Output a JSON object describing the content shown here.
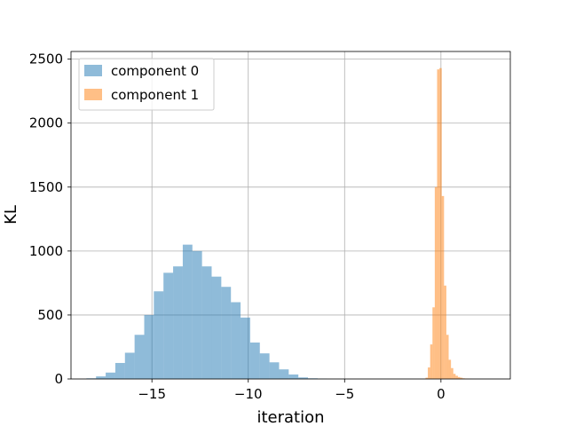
{
  "chart_data": {
    "type": "bar",
    "title": "",
    "xlabel": "iteration",
    "ylabel": "KL",
    "xlim": [
      -19.2,
      3.6
    ],
    "ylim": [
      0,
      2560
    ],
    "grid": true,
    "legend_position": "top-left",
    "x_ticks": [
      -15,
      -10,
      -5,
      0
    ],
    "x_tick_labels": [
      "−15",
      "−10",
      "−5",
      "0"
    ],
    "y_ticks": [
      0,
      500,
      1000,
      1500,
      2000,
      2500
    ],
    "y_tick_labels": [
      "0",
      "500",
      "1000",
      "1500",
      "2000",
      "2500"
    ],
    "series": [
      {
        "name": "component 0",
        "color": "#1f77b4",
        "alpha": 0.5,
        "bin_edges": [
          -18.4,
          -17.9,
          -17.4,
          -16.9,
          -16.4,
          -15.9,
          -15.4,
          -14.9,
          -14.4,
          -13.9,
          -13.4,
          -12.9,
          -12.4,
          -11.9,
          -11.4,
          -10.9,
          -10.4,
          -9.9,
          -9.4,
          -8.9,
          -8.4,
          -7.9,
          -7.4,
          -6.9,
          -6.4,
          -5.9
        ],
        "counts": [
          5,
          20,
          50,
          125,
          205,
          345,
          500,
          685,
          830,
          880,
          1050,
          1000,
          880,
          800,
          720,
          600,
          480,
          285,
          200,
          130,
          75,
          35,
          12,
          5,
          2
        ]
      },
      {
        "name": "component 1",
        "color": "#ff7f0e",
        "alpha": 0.5,
        "bin_edges": [
          -0.8,
          -0.68,
          -0.56,
          -0.44,
          -0.32,
          -0.2,
          -0.08,
          0.04,
          0.16,
          0.28,
          0.4,
          0.52,
          0.64,
          0.76,
          0.88,
          1.0,
          1.12,
          1.24,
          1.36,
          1.48,
          1.6
        ],
        "counts": [
          10,
          90,
          270,
          560,
          1500,
          2420,
          2430,
          1430,
          730,
          345,
          150,
          85,
          40,
          25,
          15,
          10,
          5,
          3,
          2,
          1
        ]
      }
    ]
  }
}
